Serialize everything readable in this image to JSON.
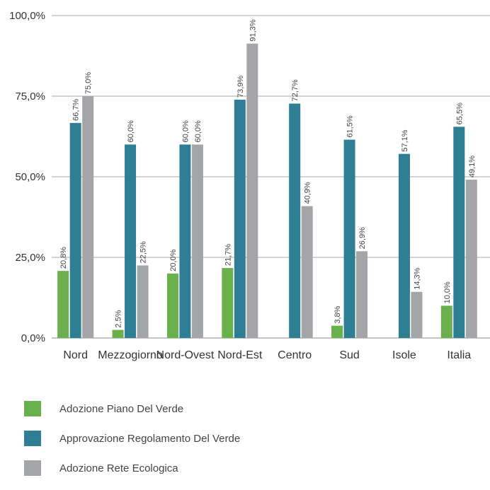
{
  "chart_data": {
    "type": "bar",
    "categories": [
      "Nord",
      "Mezzogiorno",
      "Nord-Ovest",
      "Nord-Est",
      "Centro",
      "Sud",
      "Isole",
      "Italia"
    ],
    "series": [
      {
        "name": "Adozione Piano Del Verde",
        "color": "#6ab04c",
        "values": [
          20.8,
          2.5,
          20.0,
          21.7,
          null,
          3.8,
          null,
          10.0
        ],
        "labels": [
          "20,8%",
          "2,5%",
          "20,0%",
          "21,7%",
          "",
          "3,8%",
          "",
          "10,0%"
        ]
      },
      {
        "name": "Approvazione Regolamento Del Verde",
        "color": "#2e7f93",
        "values": [
          66.7,
          60.0,
          60.0,
          73.9,
          72.7,
          61.5,
          57.1,
          65.5
        ],
        "labels": [
          "66,7%",
          "60,0%",
          "60,0%",
          "73,9%",
          "72,7%",
          "61,5%",
          "57,1%",
          "65,5%"
        ]
      },
      {
        "name": "Adozione Rete Ecologica",
        "color": "#a3a5a8",
        "values": [
          75.0,
          22.5,
          60.0,
          91.3,
          40.9,
          26.9,
          14.3,
          49.1
        ],
        "labels": [
          "75,0%",
          "22,5%",
          "60,0%",
          "91,3%",
          "40,9%",
          "26,9%",
          "14,3%",
          "49,1%"
        ]
      }
    ],
    "yticks": [
      "0,0%",
      "25,0%",
      "50,0%",
      "75,0%",
      "100,0%"
    ],
    "ytick_values": [
      0,
      25,
      50,
      75,
      100
    ],
    "ylim": [
      0,
      100
    ],
    "grid": true,
    "legend_position": "bottom-left"
  }
}
